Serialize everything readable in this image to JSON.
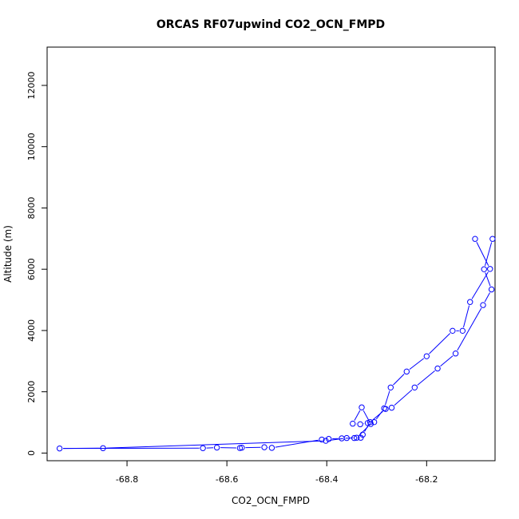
{
  "chart_data": {
    "type": "line",
    "title": "ORCAS RF07upwind CO2_OCN_FMPD",
    "xlabel": "CO2_OCN_FMPD",
    "ylabel": "Altitude (m)",
    "xlim": [
      -68.96,
      -68.063
    ],
    "ylim": [
      -250,
      13250
    ],
    "xticks": [
      -68.8,
      -68.6,
      -68.4,
      -68.2
    ],
    "yticks": [
      0,
      2000,
      4000,
      6000,
      8000,
      10000,
      12000
    ],
    "grid": false,
    "legend": "none",
    "series": [
      {
        "color": "#0000ff",
        "marker": "open-circle",
        "points": [
          [
            -68.068,
            6990
          ],
          [
            -68.085,
            6000
          ],
          [
            -68.07,
            5340
          ],
          [
            -68.087,
            4830
          ],
          [
            -68.142,
            3250
          ],
          [
            -68.178,
            2760
          ],
          [
            -68.224,
            2140
          ],
          [
            -68.27,
            1480
          ],
          [
            -68.282,
            1440
          ],
          [
            -68.313,
            1010
          ],
          [
            -68.328,
            600
          ],
          [
            -68.332,
            500
          ],
          [
            -68.345,
            490
          ],
          [
            -68.37,
            480
          ],
          [
            -68.396,
            460
          ],
          [
            -68.41,
            440
          ],
          [
            -68.51,
            170
          ],
          [
            -68.525,
            190
          ],
          [
            -68.57,
            175
          ],
          [
            -68.574,
            165
          ],
          [
            -68.62,
            180
          ],
          [
            -68.648,
            160
          ],
          [
            -68.935,
            150
          ],
          [
            -68.848,
            160
          ],
          [
            -68.402,
            400
          ],
          [
            -68.36,
            490
          ],
          [
            -68.34,
            500
          ],
          [
            -68.312,
            950
          ],
          [
            -68.33,
            1490
          ],
          [
            -68.348,
            960
          ],
          [
            -68.333,
            940
          ],
          [
            -68.318,
            980
          ],
          [
            -68.305,
            1010
          ],
          [
            -68.285,
            1460
          ],
          [
            -68.272,
            2140
          ],
          [
            -68.24,
            2660
          ],
          [
            -68.2,
            3160
          ],
          [
            -68.148,
            3990
          ],
          [
            -68.128,
            3990
          ],
          [
            -68.113,
            4930
          ],
          [
            -68.073,
            6010
          ],
          [
            -68.103,
            6990
          ]
        ]
      }
    ]
  }
}
